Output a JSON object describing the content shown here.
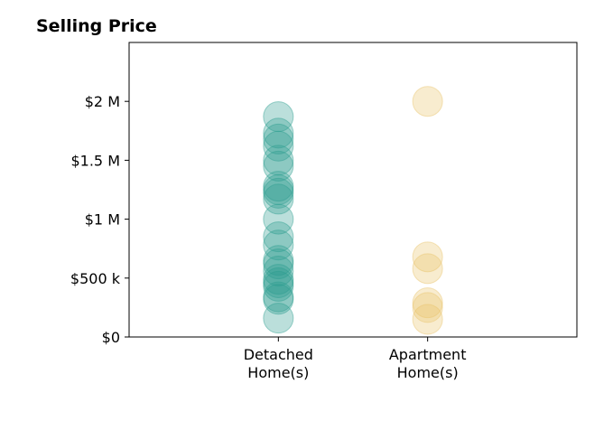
{
  "chart_data": {
    "type": "scatter",
    "title": "Selling Price",
    "xlabel": "",
    "ylabel": "",
    "categories": [
      "Detached\nHome(s)",
      "Apartment\nHome(s)"
    ],
    "y_ticks": [
      {
        "value": 0,
        "label": "$0"
      },
      {
        "value": 500000,
        "label": "$500 k"
      },
      {
        "value": 1000000,
        "label": "$1 M"
      },
      {
        "value": 1500000,
        "label": "$1.5 M"
      },
      {
        "value": 2000000,
        "label": "$2 M"
      }
    ],
    "ylim": [
      0,
      2500000
    ],
    "xlim": [
      0,
      3
    ],
    "grid": false,
    "series": [
      {
        "category_index": 0,
        "color": "#2a9d8f",
        "values": [
          1870000,
          1730000,
          1680000,
          1620000,
          1500000,
          1450000,
          1280000,
          1250000,
          1220000,
          1170000,
          1000000,
          850000,
          780000,
          650000,
          620000,
          560000,
          490000,
          460000,
          430000,
          340000,
          320000,
          160000
        ]
      },
      {
        "category_index": 1,
        "color": "#e9c46a",
        "values": [
          2000000,
          680000,
          580000,
          290000,
          250000,
          150000
        ]
      }
    ]
  }
}
